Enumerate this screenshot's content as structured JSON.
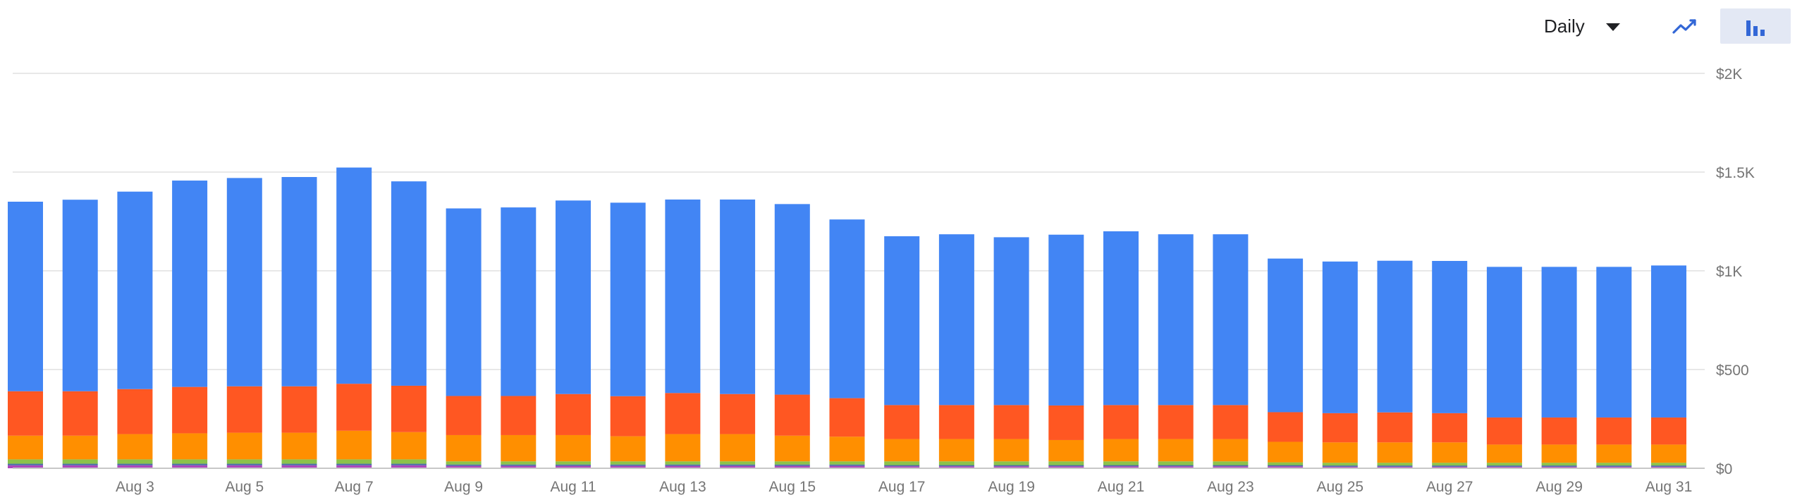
{
  "toolbar": {
    "period_label": "Daily",
    "period_caret_icon": "caret-down-icon",
    "line_view_icon": "trending-line-icon",
    "bar_view_icon": "bar-chart-icon",
    "active_view": "bar",
    "accent_color": "#3367d6",
    "active_bg": "#e3e8f4"
  },
  "chart_data": {
    "type": "bar",
    "stacked": true,
    "categories": [
      "Aug 1",
      "Aug 2",
      "Aug 3",
      "Aug 4",
      "Aug 5",
      "Aug 6",
      "Aug 7",
      "Aug 8",
      "Aug 9",
      "Aug 10",
      "Aug 11",
      "Aug 12",
      "Aug 13",
      "Aug 14",
      "Aug 15",
      "Aug 16",
      "Aug 17",
      "Aug 18",
      "Aug 19",
      "Aug 20",
      "Aug 21",
      "Aug 22",
      "Aug 23",
      "Aug 24",
      "Aug 25",
      "Aug 26",
      "Aug 27",
      "Aug 28",
      "Aug 29",
      "Aug 30",
      "Aug 31"
    ],
    "x_tick_labels": [
      "Aug 3",
      "Aug 5",
      "Aug 7",
      "Aug 9",
      "Aug 11",
      "Aug 13",
      "Aug 15",
      "Aug 17",
      "Aug 19",
      "Aug 21",
      "Aug 23",
      "Aug 25",
      "Aug 27",
      "Aug 29",
      "Aug 31"
    ],
    "y_tick_labels": [
      "$0",
      "$500",
      "$1K",
      "$1.5K",
      "$2K"
    ],
    "y_tick_values": [
      0,
      500,
      1000,
      1500,
      2000
    ],
    "ylim": [
      0,
      2000
    ],
    "grid": true,
    "legend": "none",
    "series": [
      {
        "color": "#ab47bc",
        "values": [
          15,
          15,
          15,
          15,
          15,
          15,
          15,
          15,
          12,
          12,
          12,
          12,
          12,
          12,
          12,
          12,
          10,
          10,
          10,
          10,
          10,
          10,
          10,
          10,
          8,
          8,
          8,
          8,
          8,
          8,
          8
        ]
      },
      {
        "color": "#4a6fa5",
        "values": [
          8,
          8,
          8,
          8,
          8,
          8,
          8,
          8,
          7,
          7,
          7,
          7,
          7,
          7,
          7,
          7,
          6,
          6,
          6,
          6,
          6,
          6,
          6,
          6,
          6,
          6,
          6,
          6,
          6,
          6,
          6
        ]
      },
      {
        "color": "#8bc34a",
        "values": [
          22,
          22,
          22,
          22,
          22,
          22,
          22,
          22,
          16,
          16,
          16,
          16,
          16,
          16,
          16,
          16,
          19,
          19,
          19,
          19,
          19,
          19,
          19,
          14,
          14,
          14,
          14,
          14,
          14,
          14,
          14
        ]
      },
      {
        "color": "#ff8f00",
        "values": [
          120,
          120,
          128,
          132,
          135,
          135,
          145,
          138,
          133,
          133,
          133,
          127,
          138,
          138,
          130,
          125,
          113,
          113,
          113,
          108,
          113,
          113,
          113,
          104,
          103,
          103,
          103,
          92,
          92,
          92,
          92
        ]
      },
      {
        "color": "#ff5722",
        "values": [
          225,
          225,
          228,
          235,
          235,
          235,
          238,
          235,
          198,
          198,
          208,
          203,
          208,
          203,
          208,
          195,
          172,
          172,
          172,
          175,
          172,
          172,
          172,
          150,
          148,
          152,
          148,
          137,
          137,
          137,
          137
        ]
      },
      {
        "color": "#4285f4",
        "values": [
          960,
          970,
          1000,
          1045,
          1055,
          1060,
          1095,
          1035,
          950,
          955,
          980,
          980,
          980,
          985,
          965,
          905,
          855,
          865,
          850,
          865,
          880,
          865,
          865,
          778,
          768,
          768,
          771,
          763,
          763,
          763,
          770
        ]
      }
    ],
    "colors": {
      "grid": "#e0e0e0",
      "axis_text": "#757575",
      "baseline": "#c8c8c8"
    }
  }
}
